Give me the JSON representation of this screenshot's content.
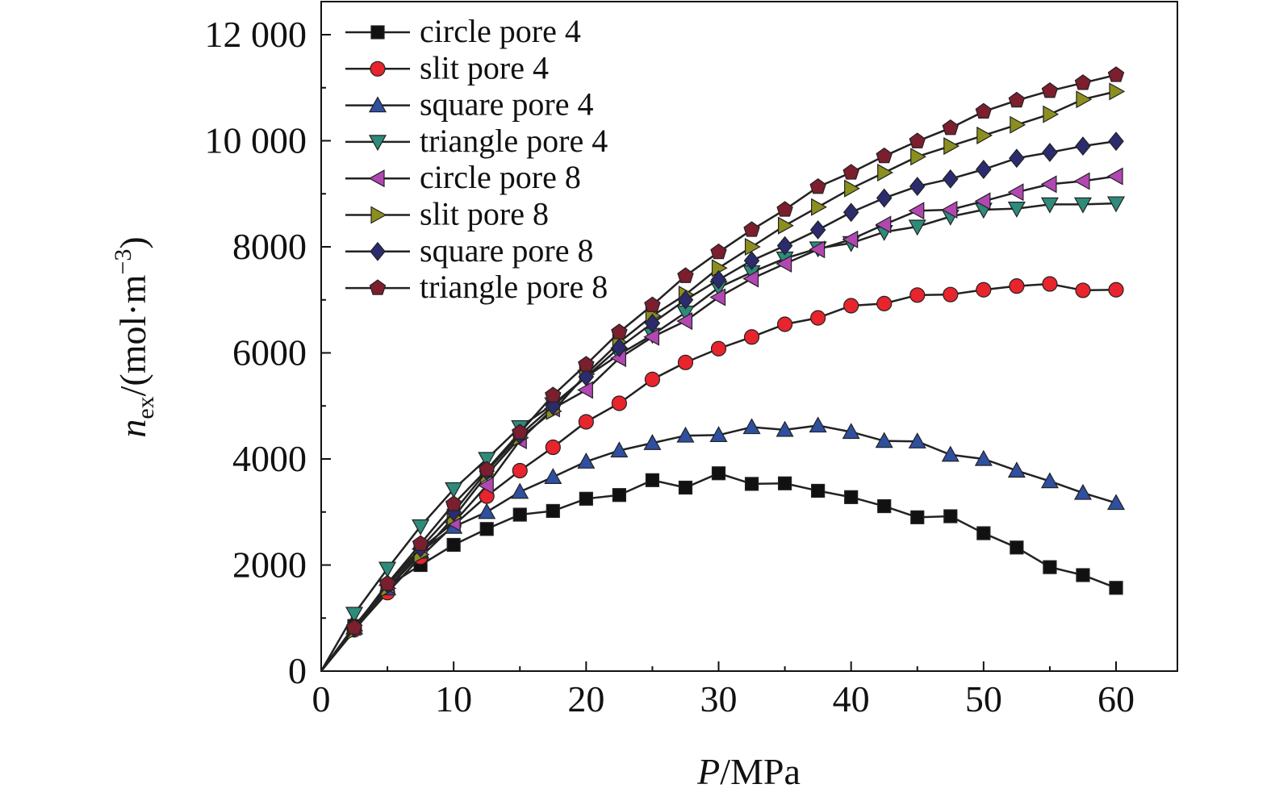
{
  "chart_data": {
    "type": "line",
    "title": "",
    "xlabel_main": "P",
    "xlabel_unit": "/MPa",
    "ylabel_main": "n",
    "ylabel_sub": "ex",
    "ylabel_unit_pre": "/(mol·m",
    "ylabel_sup": "−3",
    "ylabel_unit_post": ")",
    "xlim": [
      0,
      65
    ],
    "ylim": [
      0,
      12600
    ],
    "x_ticks": [
      0,
      10,
      20,
      30,
      40,
      50,
      60
    ],
    "x_tick_labels": [
      "0",
      "10",
      "20",
      "30",
      "40",
      "50",
      "60"
    ],
    "y_ticks": [
      0,
      2000,
      4000,
      6000,
      8000,
      10000,
      12000
    ],
    "y_tick_labels": [
      "0",
      "2000",
      "4000",
      "6000",
      "8000",
      "10 000",
      "12 000"
    ],
    "grid": false,
    "legend_position": "top-left",
    "x": [
      0,
      2.5,
      5,
      7.5,
      10,
      12.5,
      15,
      17.5,
      20,
      22.5,
      25,
      27.5,
      30,
      32.5,
      35,
      37.5,
      40,
      42.5,
      45,
      47.5,
      50,
      52.5,
      55,
      57.5,
      60
    ],
    "series": [
      {
        "name": "circle pore 4",
        "color": "#111111",
        "marker": "square",
        "values": [
          0,
          850,
          1600,
          2000,
          2380,
          2680,
          2950,
          3020,
          3250,
          3320,
          3600,
          3460,
          3730,
          3530,
          3540,
          3400,
          3280,
          3110,
          2900,
          2920,
          2600,
          2330,
          1960,
          1810,
          1570
        ]
      },
      {
        "name": "slit pore 4",
        "color": "#e8242c",
        "marker": "circle",
        "values": [
          0,
          780,
          1480,
          2150,
          2750,
          3300,
          3780,
          4220,
          4700,
          5050,
          5500,
          5820,
          6080,
          6300,
          6540,
          6660,
          6890,
          6930,
          7090,
          7100,
          7190,
          7260,
          7300,
          7180,
          7190
        ]
      },
      {
        "name": "square pore 4",
        "color": "#2f4f9f",
        "marker": "triangle-up",
        "values": [
          0,
          820,
          1560,
          2250,
          2720,
          3000,
          3380,
          3660,
          3950,
          4160,
          4300,
          4440,
          4450,
          4600,
          4550,
          4630,
          4510,
          4340,
          4330,
          4080,
          4000,
          3780,
          3580,
          3360,
          3170
        ]
      },
      {
        "name": "triangle pore 4",
        "color": "#2e8b7a",
        "marker": "triangle-down",
        "values": [
          0,
          1080,
          1930,
          2730,
          3430,
          4000,
          4600,
          5030,
          5550,
          5970,
          6340,
          6760,
          7230,
          7520,
          7780,
          7970,
          8070,
          8280,
          8380,
          8570,
          8700,
          8720,
          8800,
          8800,
          8820
        ]
      },
      {
        "name": "circle pore 8",
        "color": "#b247b2",
        "marker": "triangle-left",
        "values": [
          0,
          830,
          1620,
          2300,
          2800,
          3500,
          4350,
          4950,
          5300,
          5900,
          6300,
          6600,
          7050,
          7400,
          7680,
          7950,
          8140,
          8420,
          8680,
          8700,
          8860,
          9030,
          9180,
          9240,
          9330
        ]
      },
      {
        "name": "slit pore 8",
        "color": "#8b8f1e",
        "marker": "triangle-right",
        "values": [
          0,
          760,
          1560,
          2200,
          2900,
          3700,
          4400,
          4900,
          5600,
          6200,
          6700,
          7100,
          7600,
          8000,
          8400,
          8750,
          9100,
          9400,
          9700,
          9900,
          10100,
          10300,
          10500,
          10780,
          10930
        ]
      },
      {
        "name": "square pore 8",
        "color": "#2b2b6e",
        "marker": "diamond",
        "values": [
          0,
          810,
          1640,
          2320,
          3000,
          3770,
          4450,
          5000,
          5550,
          6100,
          6560,
          7000,
          7380,
          7740,
          8020,
          8320,
          8650,
          8920,
          9140,
          9280,
          9460,
          9670,
          9780,
          9900,
          9990
        ]
      },
      {
        "name": "triangle pore 8",
        "color": "#7b1e2e",
        "marker": "pentagon",
        "values": [
          0,
          820,
          1650,
          2400,
          3150,
          3800,
          4500,
          5200,
          5780,
          6390,
          6900,
          7450,
          7900,
          8320,
          8700,
          9130,
          9400,
          9710,
          9990,
          10240,
          10550,
          10760,
          10940,
          11090,
          11240
        ]
      }
    ]
  }
}
